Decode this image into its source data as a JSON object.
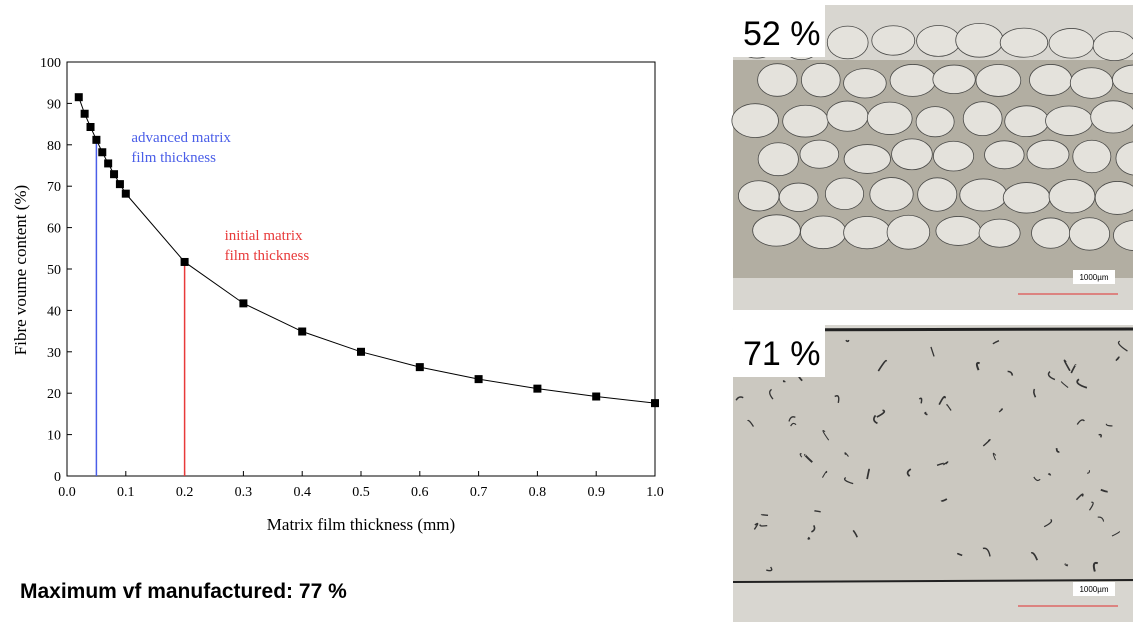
{
  "chart_data": {
    "type": "scatter",
    "x_label": "Matrix film thickness (mm)",
    "y_label": "Fibre voume content (%)",
    "x": [
      0.02,
      0.03,
      0.04,
      0.05,
      0.06,
      0.07,
      0.08,
      0.09,
      0.1,
      0.2,
      0.3,
      0.4,
      0.5,
      0.6,
      0.7,
      0.8,
      0.9,
      1.0
    ],
    "series": [
      {
        "color": "#000000",
        "values": [
          91.5,
          87.5,
          84.3,
          81.2,
          78.2,
          75.5,
          72.9,
          70.5,
          68.2,
          51.7,
          41.7,
          34.9,
          30.0,
          26.3,
          23.4,
          21.1,
          19.2,
          17.6
        ]
      }
    ],
    "xlim": [
      0,
      1
    ],
    "xticks": [
      {
        "value": 0,
        "label": "0.0"
      },
      0.1,
      0.2,
      0.3,
      0.4,
      0.5,
      0.6,
      0.7,
      0.8,
      0.9,
      {
        "value": 1,
        "label": "1.0"
      }
    ],
    "ylim": [
      0,
      100
    ],
    "yticks": [
      0,
      10,
      20,
      30,
      40,
      50,
      60,
      70,
      80,
      90,
      100
    ],
    "markers": [
      {
        "lines": [
          "advanced matrix",
          "film thickness"
        ],
        "x": 0.05,
        "y": 81.2,
        "color": "#4a5ee8"
      },
      {
        "lines": [
          "initial matrix",
          "film thickness"
        ],
        "x": 0.2,
        "y": 51.7,
        "color": "#e83a3a"
      }
    ]
  },
  "micrographs": [
    {
      "label": "52 %",
      "scale": "1000µm"
    },
    {
      "label": "71 %",
      "scale": "1000µm"
    }
  ],
  "footer": "Maximum vf manufactured: 77 %"
}
